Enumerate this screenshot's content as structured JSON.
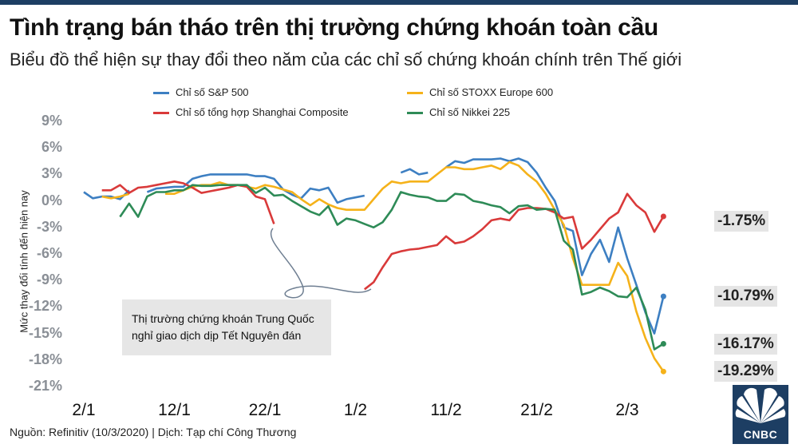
{
  "header": {
    "title": "Tình trạng bán tháo trên thị trường chứng khoán toàn cầu",
    "subtitle": "Biểu đồ thể hiện sự thay đổi theo năm của các chỉ số chứng khoán chính trên Thế giới"
  },
  "footer": {
    "source": "Nguồn: Refinitiv (10/3/2020) | Dịch: Tạp chí Công Thương",
    "logo_text": "CNBC"
  },
  "chart_data": {
    "type": "line",
    "ylabel": "Mức thay đổi tính đến hiện nay",
    "ylim": [
      -21,
      9
    ],
    "yticks": [
      9,
      6,
      3,
      0,
      -3,
      -6,
      -9,
      -12,
      -15,
      -18,
      -21
    ],
    "ytick_labels": [
      "9%",
      "6%",
      "3%",
      "0%",
      "-3%",
      "-6%",
      "-9%",
      "-12%",
      "-15%",
      "-18%",
      "-21%"
    ],
    "xticks": [
      {
        "label": "2/1",
        "pos": 0
      },
      {
        "label": "12/1",
        "pos": 10
      },
      {
        "label": "22/1",
        "pos": 20
      },
      {
        "label": "1/2",
        "pos": 30
      },
      {
        "label": "11/2",
        "pos": 40
      },
      {
        "label": "21/2",
        "pos": 50
      },
      {
        "label": "2/3",
        "pos": 60
      }
    ],
    "grid": false,
    "legend_position": "top",
    "annotation": {
      "text": "Thị trường chứng khoán Trung Quốc nghỉ giao dịch dịp Tết Nguyên đán"
    },
    "series": [
      {
        "name": "Chỉ số S&P 500",
        "color": "#3d7fc2",
        "end_label": "-10.79%",
        "points": [
          [
            0,
            1.0
          ],
          [
            1,
            0.3
          ],
          [
            2,
            0.5
          ],
          [
            3,
            0.5
          ],
          [
            4,
            0.2
          ],
          [
            5,
            1.2
          ],
          [
            7,
            1.0
          ],
          [
            8,
            1.4
          ],
          [
            9,
            1.5
          ],
          [
            10,
            1.6
          ],
          [
            11,
            1.6
          ],
          [
            12,
            2.5
          ],
          [
            13,
            2.8
          ],
          [
            14,
            3.0
          ],
          [
            15,
            3.0
          ],
          [
            16,
            3.0
          ],
          [
            17,
            3.0
          ],
          [
            18,
            3.0
          ],
          [
            19,
            2.8
          ],
          [
            20,
            2.8
          ],
          [
            21,
            2.5
          ],
          [
            22,
            1.3
          ],
          [
            23,
            0.7
          ],
          [
            24,
            0.3
          ],
          [
            25,
            1.4
          ],
          [
            26,
            1.2
          ],
          [
            27,
            1.5
          ],
          [
            28,
            -0.2
          ],
          [
            29,
            0.2
          ],
          [
            30,
            0.4
          ],
          [
            31,
            0.6
          ],
          [
            33,
            1.8
          ],
          [
            35,
            3.2
          ],
          [
            36,
            3.6
          ],
          [
            37,
            3.0
          ],
          [
            38,
            3.2
          ],
          [
            40,
            3.8
          ],
          [
            41,
            4.5
          ],
          [
            42,
            4.3
          ],
          [
            43,
            4.7
          ],
          [
            44,
            4.7
          ],
          [
            45,
            4.7
          ],
          [
            46,
            4.8
          ],
          [
            47,
            4.5
          ],
          [
            48,
            4.8
          ],
          [
            49,
            4.4
          ],
          [
            50,
            3.2
          ],
          [
            51,
            1.5
          ],
          [
            52,
            0.0
          ],
          [
            53,
            -3.0
          ],
          [
            54,
            -3.4
          ],
          [
            55,
            -8.4
          ],
          [
            56,
            -6.0
          ],
          [
            57,
            -4.4
          ],
          [
            58,
            -6.9
          ],
          [
            59,
            -3.0
          ],
          [
            60,
            -6.5
          ],
          [
            61,
            -9.5
          ],
          [
            62,
            -12.6
          ],
          [
            63,
            -15.0
          ],
          [
            64,
            -10.8
          ]
        ]
      },
      {
        "name": "Chỉ số STOXX Europe 600",
        "color": "#f5b21a",
        "end_label": "-19.29%",
        "points": [
          [
            0,
            0.8
          ],
          [
            2,
            0.5
          ],
          [
            3,
            0.3
          ],
          [
            4,
            0.5
          ],
          [
            5,
            0.8
          ],
          [
            7,
            0.8
          ],
          [
            9,
            0.8
          ],
          [
            10,
            0.8
          ],
          [
            11,
            1.2
          ],
          [
            12,
            1.6
          ],
          [
            13,
            1.8
          ],
          [
            14,
            1.8
          ],
          [
            15,
            2.1
          ],
          [
            16,
            1.8
          ],
          [
            17,
            1.8
          ],
          [
            18,
            1.6
          ],
          [
            19,
            1.4
          ],
          [
            20,
            1.8
          ],
          [
            21,
            1.6
          ],
          [
            22,
            1.3
          ],
          [
            23,
            1.0
          ],
          [
            24,
            0.2
          ],
          [
            25,
            -0.5
          ],
          [
            26,
            0.2
          ],
          [
            27,
            -0.4
          ],
          [
            28,
            -0.8
          ],
          [
            29,
            -1.0
          ],
          [
            30,
            -1.0
          ],
          [
            31,
            -1.0
          ],
          [
            32,
            0.2
          ],
          [
            33,
            1.4
          ],
          [
            34,
            2.2
          ],
          [
            35,
            2.0
          ],
          [
            36,
            2.2
          ],
          [
            37,
            2.2
          ],
          [
            38,
            2.2
          ],
          [
            39,
            3.0
          ],
          [
            40,
            3.8
          ],
          [
            41,
            3.8
          ],
          [
            42,
            3.6
          ],
          [
            43,
            3.6
          ],
          [
            44,
            3.8
          ],
          [
            45,
            4.0
          ],
          [
            46,
            3.6
          ],
          [
            47,
            4.4
          ],
          [
            48,
            4.0
          ],
          [
            49,
            3.0
          ],
          [
            50,
            2.2
          ],
          [
            51,
            0.8
          ],
          [
            52,
            -1.0
          ],
          [
            53,
            -2.7
          ],
          [
            54,
            -6.5
          ],
          [
            55,
            -9.5
          ],
          [
            56,
            -9.5
          ],
          [
            57,
            -9.5
          ],
          [
            58,
            -9.5
          ],
          [
            59,
            -7.0
          ],
          [
            60,
            -8.5
          ],
          [
            61,
            -12.5
          ],
          [
            62,
            -15.5
          ],
          [
            63,
            -17.8
          ],
          [
            64,
            -19.3
          ]
        ]
      },
      {
        "name": "Chỉ số tổng hợp Shanghai Composite",
        "color": "#d93a3a",
        "end_label": "-1.75%",
        "points": [
          [
            0,
            1.2
          ],
          [
            2,
            1.2
          ],
          [
            3,
            1.2
          ],
          [
            4,
            1.8
          ],
          [
            5,
            0.9
          ],
          [
            6,
            1.5
          ],
          [
            7,
            1.6
          ],
          [
            8,
            1.8
          ],
          [
            9,
            2.0
          ],
          [
            10,
            2.2
          ],
          [
            11,
            2.0
          ],
          [
            12,
            1.5
          ],
          [
            13,
            0.9
          ],
          [
            14,
            1.1
          ],
          [
            15,
            1.3
          ],
          [
            16,
            1.5
          ],
          [
            17,
            1.8
          ],
          [
            18,
            1.6
          ],
          [
            19,
            0.5
          ],
          [
            20,
            0.2
          ],
          [
            21,
            -2.6
          ],
          [
            31,
            -10.0
          ],
          [
            32,
            -9.2
          ],
          [
            33,
            -7.5
          ],
          [
            34,
            -6.0
          ],
          [
            35,
            -5.7
          ],
          [
            36,
            -5.5
          ],
          [
            37,
            -5.4
          ],
          [
            38,
            -5.2
          ],
          [
            39,
            -5.0
          ],
          [
            40,
            -4.0
          ],
          [
            41,
            -4.8
          ],
          [
            42,
            -4.6
          ],
          [
            43,
            -4.0
          ],
          [
            44,
            -3.2
          ],
          [
            45,
            -2.2
          ],
          [
            46,
            -2.0
          ],
          [
            47,
            -2.2
          ],
          [
            48,
            -1.0
          ],
          [
            49,
            -0.8
          ],
          [
            50,
            -0.8
          ],
          [
            51,
            -0.9
          ],
          [
            52,
            -1.3
          ],
          [
            53,
            -2.0
          ],
          [
            54,
            -1.8
          ],
          [
            55,
            -5.4
          ],
          [
            56,
            -4.4
          ],
          [
            57,
            -3.2
          ],
          [
            58,
            -2.0
          ],
          [
            59,
            -1.3
          ],
          [
            60,
            0.8
          ],
          [
            61,
            -0.5
          ],
          [
            62,
            -1.3
          ],
          [
            63,
            -3.5
          ],
          [
            64,
            -1.75
          ]
        ]
      },
      {
        "name": "Chỉ số Nikkei 225",
        "color": "#2e8b57",
        "end_label": "-16.17%",
        "points": [
          [
            4,
            -1.8
          ],
          [
            5,
            -0.3
          ],
          [
            6,
            -1.8
          ],
          [
            7,
            0.5
          ],
          [
            8,
            1.0
          ],
          [
            9,
            1.0
          ],
          [
            10,
            1.2
          ],
          [
            11,
            1.2
          ],
          [
            12,
            1.8
          ],
          [
            13,
            1.7
          ],
          [
            14,
            1.7
          ],
          [
            15,
            1.8
          ],
          [
            16,
            1.8
          ],
          [
            17,
            1.8
          ],
          [
            18,
            1.8
          ],
          [
            19,
            0.9
          ],
          [
            20,
            1.5
          ],
          [
            21,
            0.6
          ],
          [
            22,
            0.7
          ],
          [
            23,
            0.0
          ],
          [
            24,
            -0.6
          ],
          [
            25,
            -1.2
          ],
          [
            26,
            -1.6
          ],
          [
            27,
            -0.6
          ],
          [
            28,
            -2.7
          ],
          [
            29,
            -2.0
          ],
          [
            30,
            -2.2
          ],
          [
            31,
            -2.6
          ],
          [
            32,
            -3.0
          ],
          [
            33,
            -2.4
          ],
          [
            34,
            -1.0
          ],
          [
            35,
            1.0
          ],
          [
            36,
            0.7
          ],
          [
            37,
            0.5
          ],
          [
            38,
            0.4
          ],
          [
            39,
            0.0
          ],
          [
            40,
            0.0
          ],
          [
            41,
            0.8
          ],
          [
            42,
            0.7
          ],
          [
            43,
            0.0
          ],
          [
            44,
            -0.2
          ],
          [
            45,
            -0.5
          ],
          [
            46,
            -0.7
          ],
          [
            47,
            -1.4
          ],
          [
            48,
            -0.6
          ],
          [
            49,
            -0.5
          ],
          [
            50,
            -1.0
          ],
          [
            51,
            -0.9
          ],
          [
            52,
            -1.0
          ],
          [
            53,
            -4.5
          ],
          [
            54,
            -5.5
          ],
          [
            55,
            -10.6
          ],
          [
            56,
            -10.3
          ],
          [
            57,
            -9.8
          ],
          [
            58,
            -10.2
          ],
          [
            59,
            -10.8
          ],
          [
            60,
            -10.9
          ],
          [
            61,
            -9.8
          ],
          [
            62,
            -12.3
          ],
          [
            63,
            -16.8
          ],
          [
            64,
            -16.17
          ]
        ]
      }
    ]
  }
}
